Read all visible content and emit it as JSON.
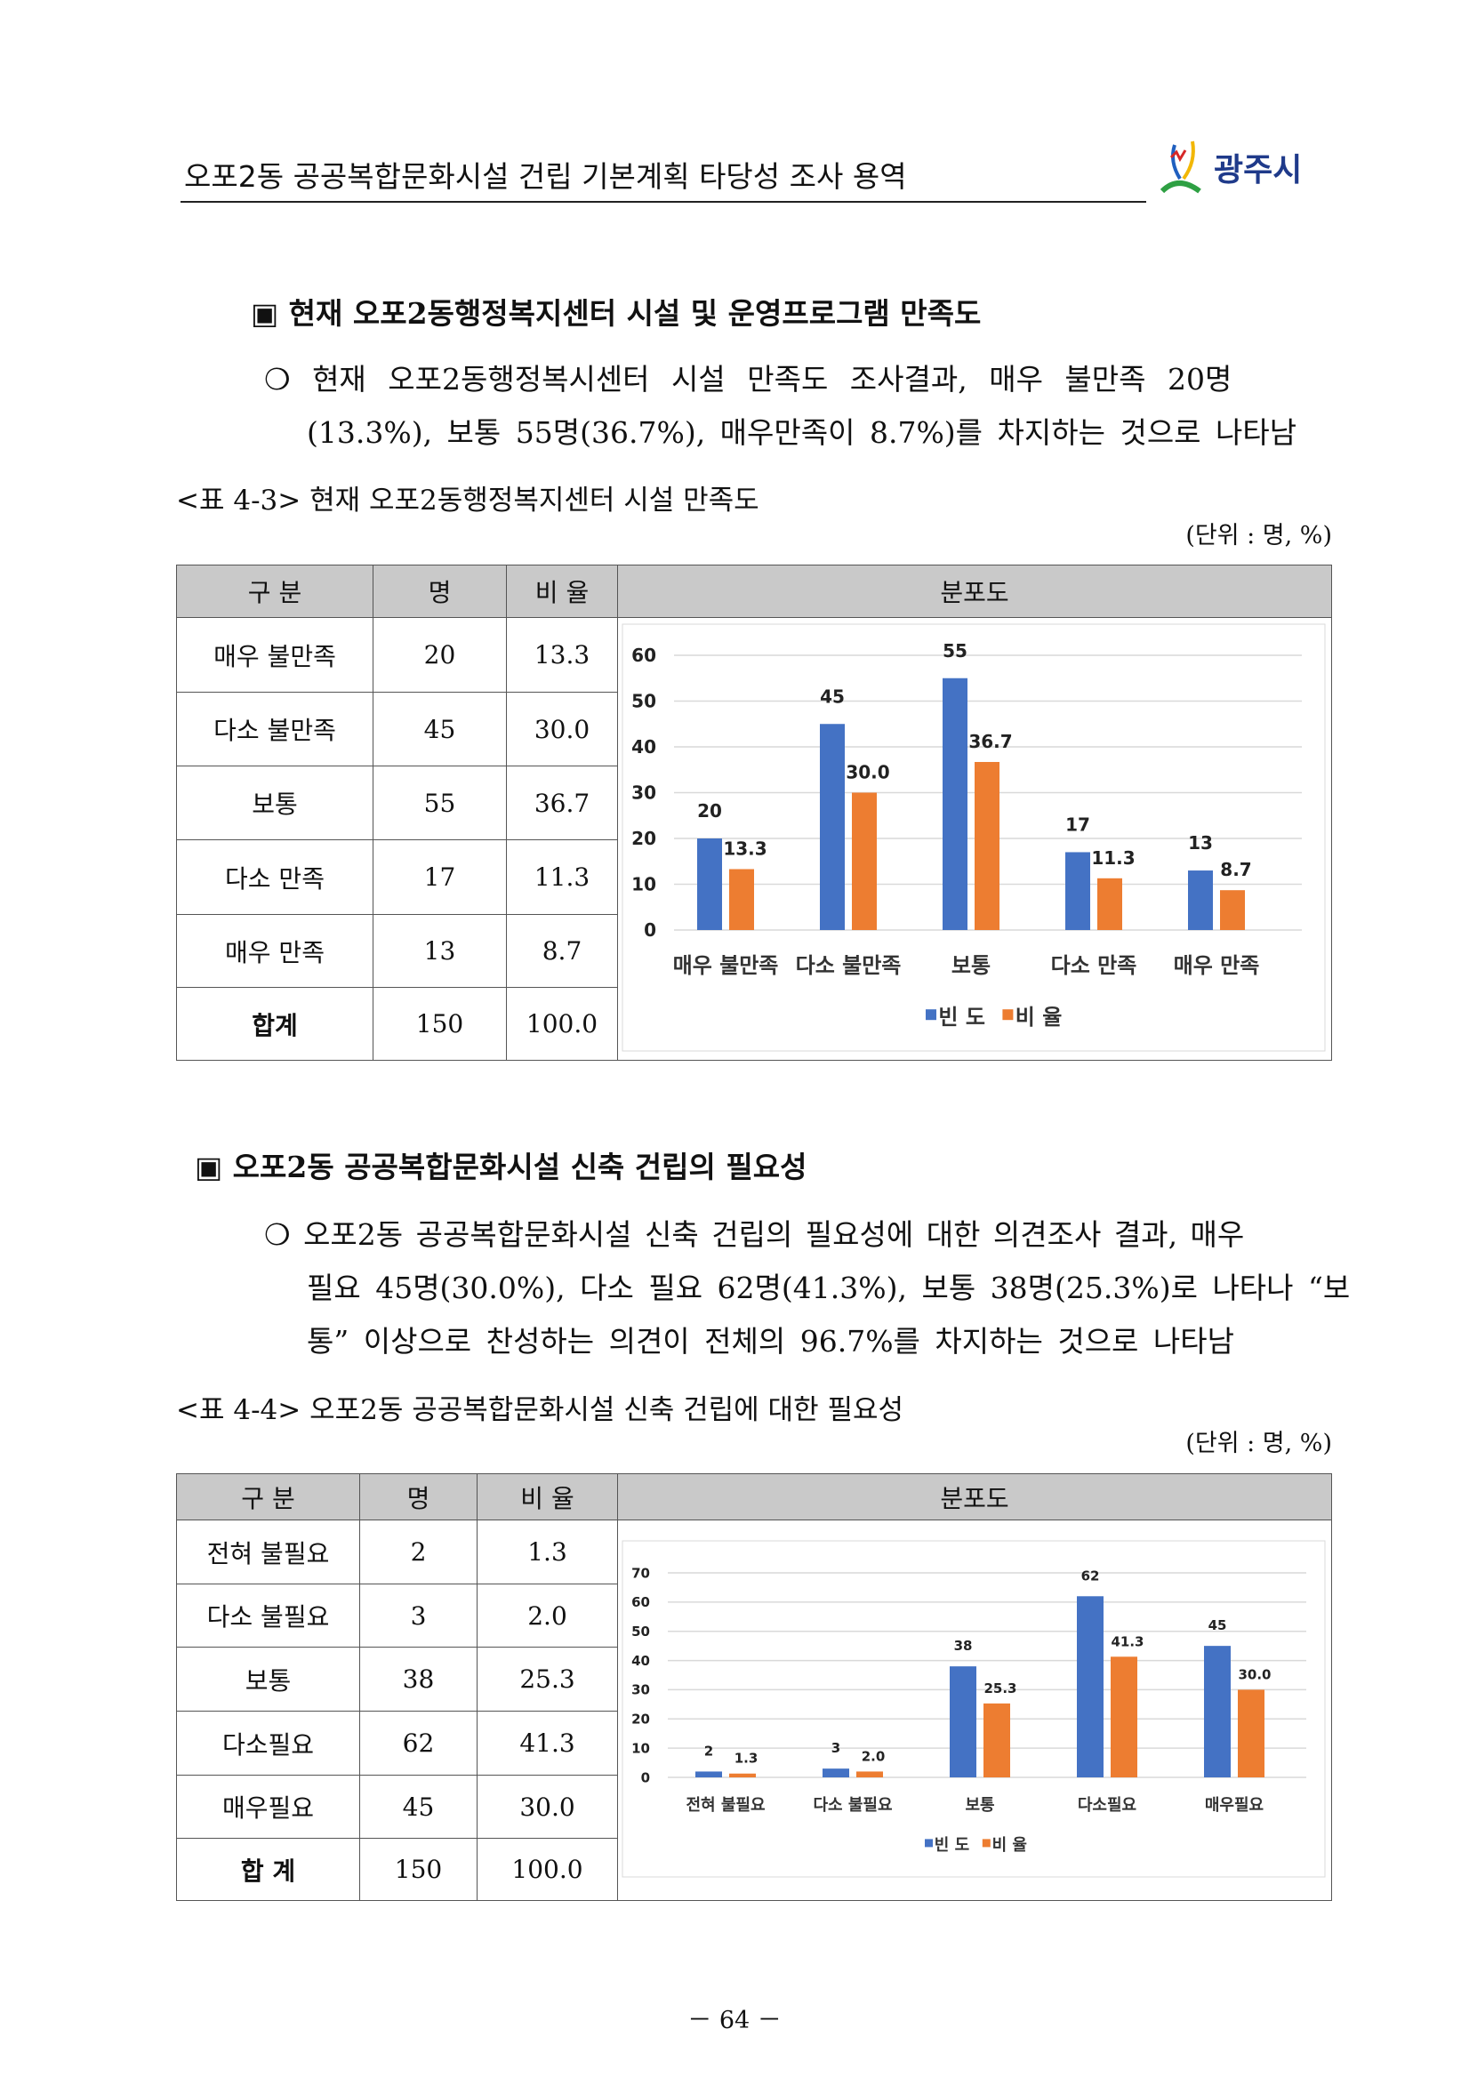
{
  "header": {
    "title": "오포2동 공공복합문화시설 건립 기본계획 타당성 조사 용역",
    "logo_text": "광주시"
  },
  "section1": {
    "heading": "▣ 현재 오포2동행정복지센터 시설 및 운영프로그램 만족도",
    "para_line1": "❍ 현재 오포2동행정복시센터 시설 만족도 조사결과, 매우 불만족 20명",
    "para_line2": "(13.3%), 보통 55명(36.7%), 매우만족이 8.7%)를 차지하는 것으로 나타남",
    "caption": "<표 4-3> 현재 오포2동행정복지센터 시설 만족도",
    "unit": "(단위 : 명, %)",
    "table": {
      "headers": [
        "구 분",
        "명",
        "비 율",
        "분포도"
      ],
      "rows": [
        [
          "매우 불만족",
          "20",
          "13.3"
        ],
        [
          "다소 불만족",
          "45",
          "30.0"
        ],
        [
          "보통",
          "55",
          "36.7"
        ],
        [
          "다소 만족",
          "17",
          "11.3"
        ],
        [
          "매우 만족",
          "13",
          "8.7"
        ],
        [
          "합계",
          "150",
          "100.0"
        ]
      ]
    }
  },
  "section2": {
    "heading": "▣ 오포2동 공공복합문화시설 신축 건립의 필요성",
    "para_line1": "❍ 오포2동 공공복합문화시설 신축 건립의 필요성에 대한 의견조사 결과, 매우",
    "para_line2": "필요 45명(30.0%), 다소 필요 62명(41.3%), 보통 38명(25.3%)로 나타나 “보",
    "para_line3": "통” 이상으로 찬성하는 의견이 전체의 96.7%를 차지하는 것으로 나타남",
    "caption": "<표 4-4> 오포2동 공공복합문화시설 신축 건립에 대한 필요성",
    "unit": "(단위 : 명, %)",
    "table": {
      "headers": [
        "구 분",
        "명",
        "비 율",
        "분포도"
      ],
      "rows": [
        [
          "전혀 불필요",
          "2",
          "1.3"
        ],
        [
          "다소 불필요",
          "3",
          "2.0"
        ],
        [
          "보통",
          "38",
          "25.3"
        ],
        [
          "다소필요",
          "62",
          "41.3"
        ],
        [
          "매우필요",
          "45",
          "30.0"
        ],
        [
          "합 계",
          "150",
          "100.0"
        ]
      ]
    }
  },
  "chart_data": [
    {
      "type": "bar",
      "categories": [
        "매우 불만족",
        "다소 불만족",
        "보통",
        "다소 만족",
        "매우 만족"
      ],
      "series": [
        {
          "name": "빈 도",
          "values": [
            20,
            45,
            55,
            17,
            13
          ],
          "color": "#4472c4"
        },
        {
          "name": "비 율",
          "values": [
            13.3,
            30.0,
            36.7,
            11.3,
            8.7
          ],
          "color": "#ed7d31"
        }
      ],
      "ylim": [
        0,
        60
      ],
      "yticks": [
        0,
        10,
        20,
        30,
        40,
        50,
        60
      ],
      "grid": true,
      "legend": "bottom"
    },
    {
      "type": "bar",
      "categories": [
        "전혀 불필요",
        "다소 불필요",
        "보통",
        "다소필요",
        "매우필요"
      ],
      "series": [
        {
          "name": "빈 도",
          "values": [
            2,
            3,
            38,
            62,
            45
          ],
          "color": "#4472c4"
        },
        {
          "name": "비 율",
          "values": [
            1.3,
            2.0,
            25.3,
            41.3,
            30.0
          ],
          "color": "#ed7d31"
        }
      ],
      "ylim": [
        0,
        70
      ],
      "yticks": [
        0,
        10,
        20,
        30,
        40,
        50,
        60,
        70
      ],
      "grid": true,
      "legend": "bottom"
    }
  ],
  "footer": {
    "page": "－ 64 －"
  }
}
